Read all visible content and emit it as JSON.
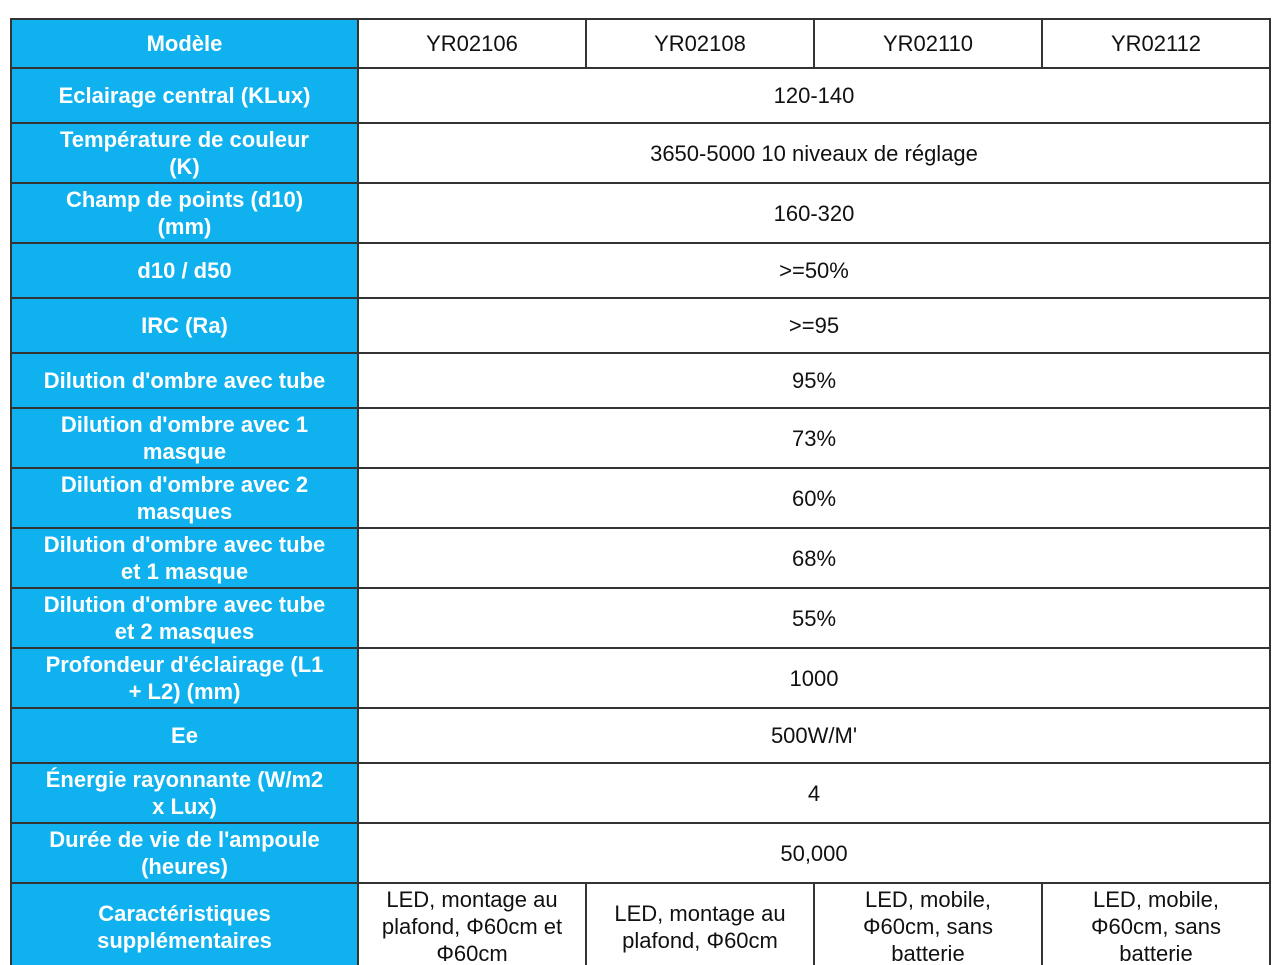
{
  "table": {
    "header": {
      "label": "Modèle",
      "models": [
        "YR02106",
        "YR02108",
        "YR02110",
        "YR02112"
      ]
    },
    "rows": [
      {
        "label": "Eclairage central (KLux)",
        "value": "120-140"
      },
      {
        "label": "Température de couleur\n(K)",
        "value": "3650-5000 10 niveaux de réglage"
      },
      {
        "label": "Champ de points (d10)\n(mm)",
        "value": "160-320"
      },
      {
        "label": "d10 / d50",
        "value": ">=50%"
      },
      {
        "label": "IRC (Ra)",
        "value": ">=95"
      },
      {
        "label": "Dilution d'ombre avec tube",
        "value": "95%"
      },
      {
        "label": "Dilution d'ombre avec 1\nmasque",
        "value": "73%"
      },
      {
        "label": "Dilution d'ombre avec 2\nmasques",
        "value": "60%"
      },
      {
        "label": "Dilution d'ombre avec tube\net 1 masque",
        "value": "68%"
      },
      {
        "label": "Dilution d'ombre avec tube\net 2 masques",
        "value": "55%"
      },
      {
        "label": "Profondeur d'éclairage (L1\n+ L2) (mm)",
        "value": "1000"
      },
      {
        "label": "Ee",
        "value": "500W/M'"
      },
      {
        "label": "Énergie rayonnante (W/m2\nx Lux)",
        "value": "4"
      },
      {
        "label": "Durée de vie de l'ampoule\n(heures)",
        "value": "50,000"
      }
    ],
    "footer": {
      "label": "Caractéristiques\nsupplémentaires",
      "values": [
        "LED, montage au\nplafond, Φ60cm et\nΦ60cm",
        "LED, montage au\nplafond, Φ60cm",
        "LED, mobile,\nΦ60cm, sans\nbatterie",
        "LED, mobile,\nΦ60cm, sans\nbatterie"
      ]
    },
    "colors": {
      "header_bg": "#0fb1ee",
      "label_text": "#ffffff",
      "value_text": "#111111",
      "border": "#333333"
    }
  }
}
